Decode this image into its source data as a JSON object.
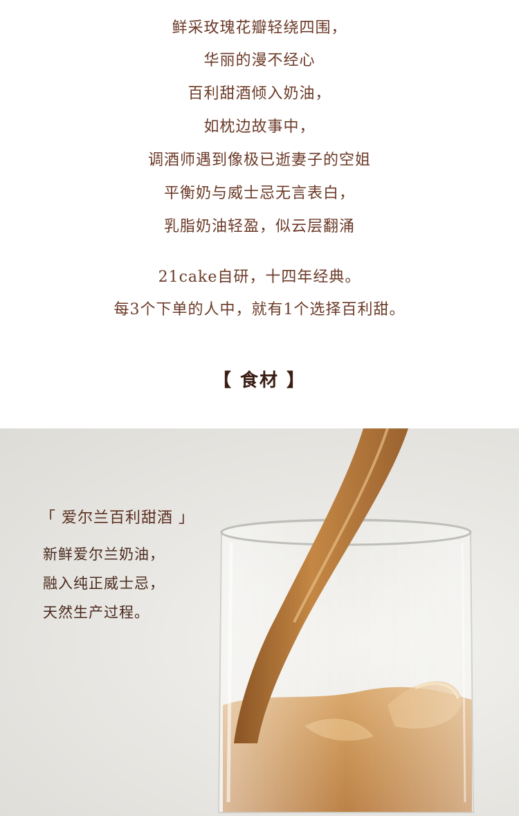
{
  "poem": {
    "lines": [
      "鲜采玫瑰花瓣轻绕四围，",
      "华丽的漫不经心",
      "百利甜酒倾入奶油，",
      "如枕边故事中，",
      "调酒师遇到像极已逝妻子的空姐",
      "平衡奶与威士忌无言表白，",
      "乳脂奶油轻盈，似云层翻涌"
    ],
    "brand_lines": [
      "21cake自研，十四年经典。",
      "每3个下单的人中，就有1个选择百利甜。"
    ]
  },
  "section": {
    "heading": "【 食材 】"
  },
  "ingredient": {
    "title": "「 爱尔兰百利甜酒 」",
    "description": [
      "新鲜爱尔兰奶油，",
      "融入纯正威士忌，",
      "天然生产过程。"
    ]
  },
  "colors": {
    "text_brown": "#6b3a28",
    "heading_dark": "#3a1e14",
    "liqueur": "#c8904f"
  }
}
